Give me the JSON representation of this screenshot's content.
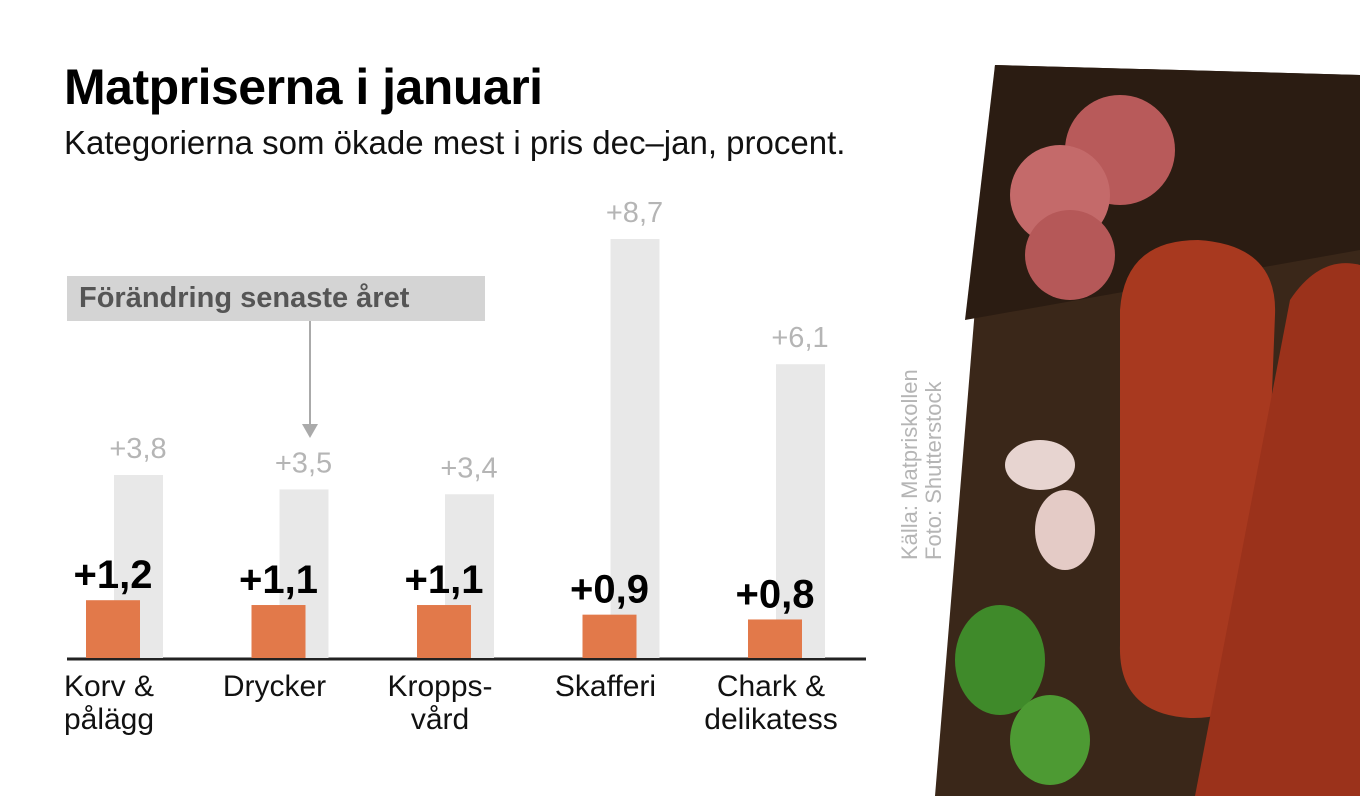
{
  "chart_data": {
    "type": "bar",
    "title": "Matpriserna i januari",
    "subtitle": "Kategorierna som ökade mest i pris dec–jan, procent.",
    "categories": [
      "Korv &\npålägg",
      "Drycker",
      "Kropps-\nvård",
      "Skafferi",
      "Chark &\ndelikatess"
    ],
    "series": [
      {
        "name": "dec–jan",
        "values": [
          1.2,
          1.1,
          1.1,
          0.9,
          0.8
        ],
        "labels": [
          "+1,2",
          "+1,1",
          "+1,1",
          "+0,9",
          "+0,8"
        ],
        "color": "#e2794a"
      },
      {
        "name": "Förändring senaste året",
        "values": [
          3.8,
          3.5,
          3.4,
          8.7,
          6.1
        ],
        "labels": [
          "+3,8",
          "+3,5",
          "+3,4",
          "+8,7",
          "+6,1"
        ],
        "color": "#e8e8e8"
      }
    ],
    "legend_label": "Förändring senaste året",
    "ylim": [
      0,
      8.7
    ],
    "grid": false
  },
  "credits": {
    "source": "Källa: Matpriskollen",
    "photo": "Foto: Shutterstock"
  }
}
